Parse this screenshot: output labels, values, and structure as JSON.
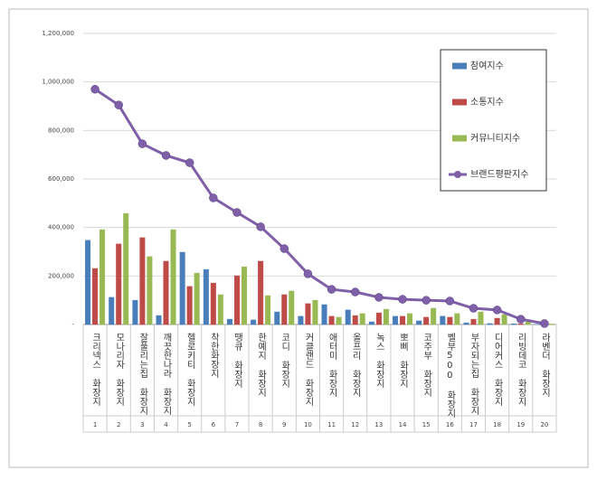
{
  "chart_data": {
    "type": "bar",
    "categories": [
      "크리넥스 화장지",
      "모나리자 화장지",
      "잘풀리는집 화장지",
      "깨끗한나라 화장지",
      "헬로키티 화장지",
      "착한화장지",
      "땡큐 화장지",
      "한예지 화장지",
      "코디 화장지",
      "커클랜드 화장지",
      "애터미 화장지",
      "올프리 화장지",
      "녹스 화장지",
      "뽀삐 화장지",
      "코주부 화장지",
      "벨부500 화장지",
      "부자되는집 화장지",
      "디어커스 화장지",
      "리빙데코 화장지",
      "라벤더 화장지"
    ],
    "ranks": [
      1,
      2,
      3,
      4,
      5,
      6,
      7,
      8,
      9,
      10,
      11,
      12,
      13,
      14,
      15,
      16,
      17,
      18,
      19,
      20
    ],
    "series": [
      {
        "name": "참여지수",
        "type": "bar",
        "color": "#4a7ebb",
        "values": [
          347000,
          112000,
          100000,
          37000,
          298000,
          227000,
          22000,
          19000,
          52000,
          34000,
          82000,
          60000,
          11000,
          34000,
          15000,
          34000,
          7000,
          4000,
          3000,
          1000
        ]
      },
      {
        "name": "소통지수",
        "type": "bar",
        "color": "#be4b48",
        "values": [
          231000,
          332000,
          358000,
          261000,
          157000,
          171000,
          201000,
          261000,
          123000,
          86000,
          34000,
          37000,
          48000,
          34000,
          30000,
          30000,
          22000,
          26000,
          3000,
          1000
        ]
      },
      {
        "name": "커뮤니티지수",
        "type": "bar",
        "color": "#98b954",
        "values": [
          391000,
          458000,
          280000,
          391000,
          212000,
          123000,
          238000,
          119000,
          138000,
          100000,
          30000,
          45000,
          63000,
          45000,
          67000,
          45000,
          52000,
          41000,
          11000,
          2000
        ]
      },
      {
        "name": "브랜드평판지수",
        "type": "line",
        "color": "#7f5fa8",
        "values": [
          970000,
          905000,
          745000,
          697000,
          667000,
          522000,
          462000,
          403000,
          313000,
          209000,
          145000,
          134000,
          112000,
          104000,
          100000,
          97000,
          67000,
          60000,
          22000,
          4000
        ]
      }
    ],
    "ylim": [
      0,
      1200000
    ],
    "yticks": [
      {
        "value": 0,
        "label": "-"
      },
      {
        "value": 200000,
        "label": "200,000"
      },
      {
        "value": 400000,
        "label": "400,000"
      },
      {
        "value": 600000,
        "label": "600,000"
      },
      {
        "value": 800000,
        "label": "800,000"
      },
      {
        "value": 1000000,
        "label": "1,000,000"
      },
      {
        "value": 1200000,
        "label": "1,200,000"
      }
    ],
    "grid": true,
    "legend": "upper right"
  }
}
